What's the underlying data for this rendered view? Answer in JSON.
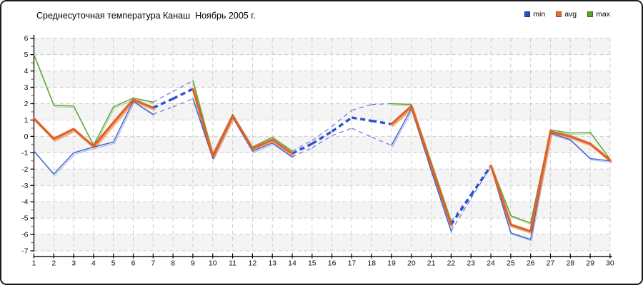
{
  "title": "Среднесуточная температура Канаш  Ноябрь 2005 г.",
  "legend": [
    {
      "label": "min",
      "color": "#2B4BD0"
    },
    {
      "label": "avg",
      "color": "#E8702E"
    },
    {
      "label": "max",
      "color": "#55A81E"
    }
  ],
  "chart_data": {
    "type": "line",
    "title": "Среднесуточная температура Канаш  Ноябрь 2005 г.",
    "xlabel": "",
    "ylabel": "",
    "x": [
      1,
      2,
      3,
      4,
      5,
      6,
      7,
      8,
      9,
      10,
      11,
      12,
      13,
      14,
      15,
      16,
      17,
      18,
      19,
      20,
      21,
      22,
      23,
      24,
      25,
      26,
      27,
      28,
      29,
      30
    ],
    "y_ticks": [
      6,
      5,
      4,
      3,
      2,
      1,
      0,
      -1,
      -2,
      -3,
      -4,
      -5,
      -6,
      -7
    ],
    "ylim": [
      -7,
      6
    ],
    "grid": true,
    "legend_position": "top-right",
    "series": [
      {
        "name": "min",
        "color": "#3F62CC",
        "shadow_color": "#9FB4E8",
        "values": [
          -0.9,
          -2.3,
          -1.0,
          -0.65,
          -0.35,
          2.15,
          1.35,
          1.8,
          2.3,
          -1.35,
          1.15,
          -0.9,
          -0.4,
          -1.25,
          -0.7,
          0.05,
          0.5,
          -0.05,
          -0.55,
          1.7,
          -2.1,
          -5.8,
          -3.8,
          -1.85,
          -5.9,
          -6.3,
          0.2,
          -0.2,
          -1.35,
          -1.5
        ]
      },
      {
        "name": "avg",
        "color": "#E0612A",
        "shadow_color": "#F2A267",
        "values": [
          1.1,
          -0.15,
          0.45,
          -0.6,
          0.85,
          2.25,
          1.75,
          2.3,
          2.9,
          -1.2,
          1.25,
          -0.75,
          -0.2,
          -1.05,
          -0.45,
          0.3,
          1.15,
          0.95,
          0.75,
          1.85,
          -1.8,
          -5.4,
          -3.6,
          -1.8,
          -5.4,
          -5.8,
          0.3,
          0.0,
          -0.45,
          -1.45
        ]
      },
      {
        "name": "max",
        "color": "#58A32F",
        "shadow_color": "#A8CE92",
        "values": [
          5.0,
          1.9,
          1.85,
          -0.55,
          1.8,
          2.35,
          2.1,
          2.75,
          3.4,
          -1.1,
          1.35,
          -0.65,
          -0.05,
          -0.9,
          -0.25,
          0.6,
          1.6,
          1.95,
          2.0,
          1.95,
          -1.6,
          -5.2,
          -3.5,
          -1.75,
          -4.85,
          -5.3,
          0.4,
          0.2,
          0.25,
          -1.4
        ]
      }
    ],
    "dashed_ranges": [
      [
        7,
        9
      ],
      [
        14,
        19
      ],
      [
        22,
        24
      ]
    ],
    "dashed_color": "#2E4FD0",
    "colors": {
      "band": "#f4f4f4",
      "grid": "#cccccc",
      "axis": "#000000",
      "minor_tick": "#cc2222",
      "tick_label": "#111111"
    }
  }
}
